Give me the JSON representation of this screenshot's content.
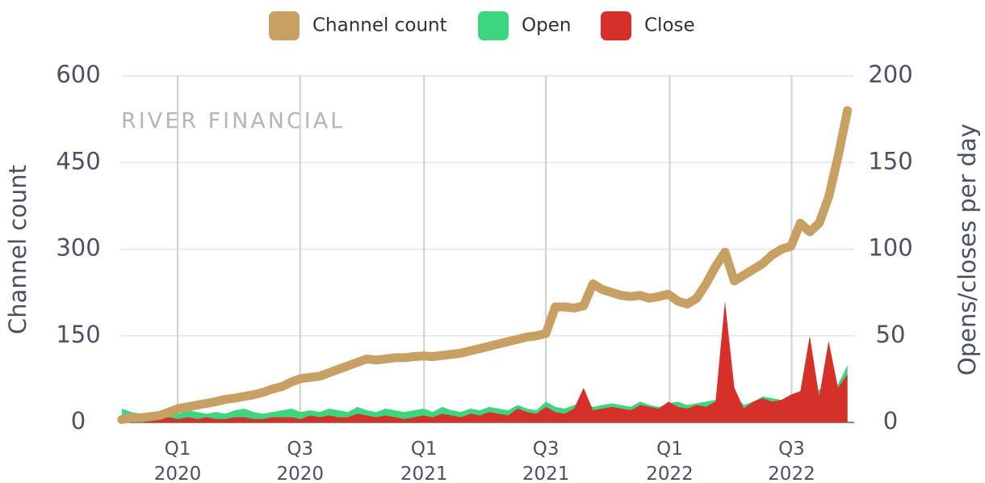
{
  "chart_data": {
    "type": "line",
    "watermark": "RIVER FINANCIAL",
    "y_label": "Channel count",
    "y2_label": "Opens/closes per day",
    "legend": "top",
    "grid": true,
    "x": [
      "2019-10-10",
      "2019-10-24",
      "2019-11-07",
      "2019-11-21",
      "2019-12-05",
      "2019-12-19",
      "2020-01-02",
      "2020-01-16",
      "2020-01-30",
      "2020-02-13",
      "2020-02-27",
      "2020-03-12",
      "2020-03-26",
      "2020-04-09",
      "2020-04-23",
      "2020-05-07",
      "2020-05-21",
      "2020-06-04",
      "2020-06-18",
      "2020-07-02",
      "2020-07-16",
      "2020-07-30",
      "2020-08-13",
      "2020-08-27",
      "2020-09-10",
      "2020-09-24",
      "2020-10-08",
      "2020-10-22",
      "2020-11-05",
      "2020-11-19",
      "2020-12-03",
      "2020-12-17",
      "2020-12-31",
      "2021-01-14",
      "2021-01-28",
      "2021-02-11",
      "2021-02-25",
      "2021-03-11",
      "2021-03-25",
      "2021-04-08",
      "2021-04-22",
      "2021-05-06",
      "2021-05-20",
      "2021-06-03",
      "2021-06-17",
      "2021-07-01",
      "2021-07-15",
      "2021-07-29",
      "2021-08-12",
      "2021-08-26",
      "2021-09-09",
      "2021-09-23",
      "2021-10-07",
      "2021-10-21",
      "2021-11-04",
      "2021-11-18",
      "2021-12-02",
      "2021-12-16",
      "2021-12-30",
      "2022-01-13",
      "2022-01-27",
      "2022-02-10",
      "2022-02-24",
      "2022-03-10",
      "2022-03-24",
      "2022-04-07",
      "2022-04-21",
      "2022-05-05",
      "2022-05-19",
      "2022-06-02",
      "2022-06-16",
      "2022-06-30",
      "2022-07-14",
      "2022-07-28",
      "2022-08-11",
      "2022-08-25",
      "2022-09-08",
      "2022-09-22"
    ],
    "xlim": [
      "2019-10-09",
      "2022-10-02"
    ],
    "xticks": [
      {
        "value": "2020-01-01",
        "label": "Q1 2020"
      },
      {
        "value": "2020-07-01",
        "label": "Q3 2020"
      },
      {
        "value": "2021-01-01",
        "label": "Q1 2021"
      },
      {
        "value": "2021-07-01",
        "label": "Q3 2021"
      },
      {
        "value": "2022-01-01",
        "label": "Q1 2022"
      },
      {
        "value": "2022-07-01",
        "label": "Q3 2022"
      }
    ],
    "ylim": [
      0,
      600
    ],
    "yticks": [
      0,
      150,
      300,
      450,
      600
    ],
    "y2lim": [
      0,
      200
    ],
    "y2ticks": [
      0,
      50,
      100,
      150,
      200
    ],
    "series": [
      {
        "name": "Channel count",
        "color": "#c9a063",
        "values": [
          5,
          8,
          8,
          10,
          12,
          18,
          24,
          27,
          30,
          33,
          36,
          40,
          42,
          45,
          48,
          52,
          58,
          62,
          70,
          76,
          78,
          80,
          86,
          92,
          98,
          104,
          110,
          108,
          110,
          112,
          112,
          114,
          115,
          114,
          116,
          118,
          120,
          124,
          128,
          132,
          136,
          140,
          144,
          148,
          150,
          154,
          200,
          200,
          198,
          202,
          240,
          230,
          225,
          220,
          218,
          220,
          215,
          218,
          222,
          210,
          205,
          215,
          240,
          270,
          295,
          245,
          255,
          265,
          275,
          290,
          300,
          305,
          345,
          330,
          345,
          390,
          460,
          540
        ]
      },
      {
        "name": "Open",
        "color": "#3dd57e",
        "axis": "y2",
        "values": [
          8,
          6,
          5,
          4,
          5,
          6,
          5,
          7,
          6,
          5,
          6,
          5,
          7,
          8,
          6,
          5,
          6,
          7,
          8,
          6,
          7,
          6,
          8,
          7,
          6,
          9,
          7,
          6,
          8,
          7,
          6,
          7,
          8,
          6,
          9,
          7,
          6,
          8,
          7,
          9,
          8,
          7,
          10,
          8,
          7,
          12,
          9,
          8,
          10,
          12,
          9,
          10,
          11,
          10,
          9,
          12,
          10,
          9,
          11,
          12,
          10,
          11,
          12,
          13,
          14,
          16,
          10,
          12,
          15,
          14,
          13,
          16,
          18,
          17,
          19,
          20,
          22,
          33
        ]
      },
      {
        "name": "Close",
        "color": "#d6302a",
        "axis": "y2",
        "values": [
          3,
          2,
          2,
          1,
          2,
          3,
          2,
          3,
          2,
          3,
          2,
          2,
          3,
          3,
          2,
          2,
          3,
          3,
          3,
          2,
          4,
          3,
          4,
          3,
          3,
          5,
          4,
          3,
          4,
          3,
          2,
          3,
          4,
          3,
          5,
          4,
          3,
          5,
          4,
          6,
          5,
          4,
          8,
          6,
          5,
          9,
          6,
          5,
          8,
          20,
          7,
          8,
          9,
          8,
          7,
          10,
          9,
          8,
          12,
          9,
          8,
          10,
          9,
          12,
          70,
          20,
          8,
          12,
          14,
          12,
          13,
          16,
          18,
          50,
          15,
          47,
          20,
          28
        ]
      }
    ]
  }
}
